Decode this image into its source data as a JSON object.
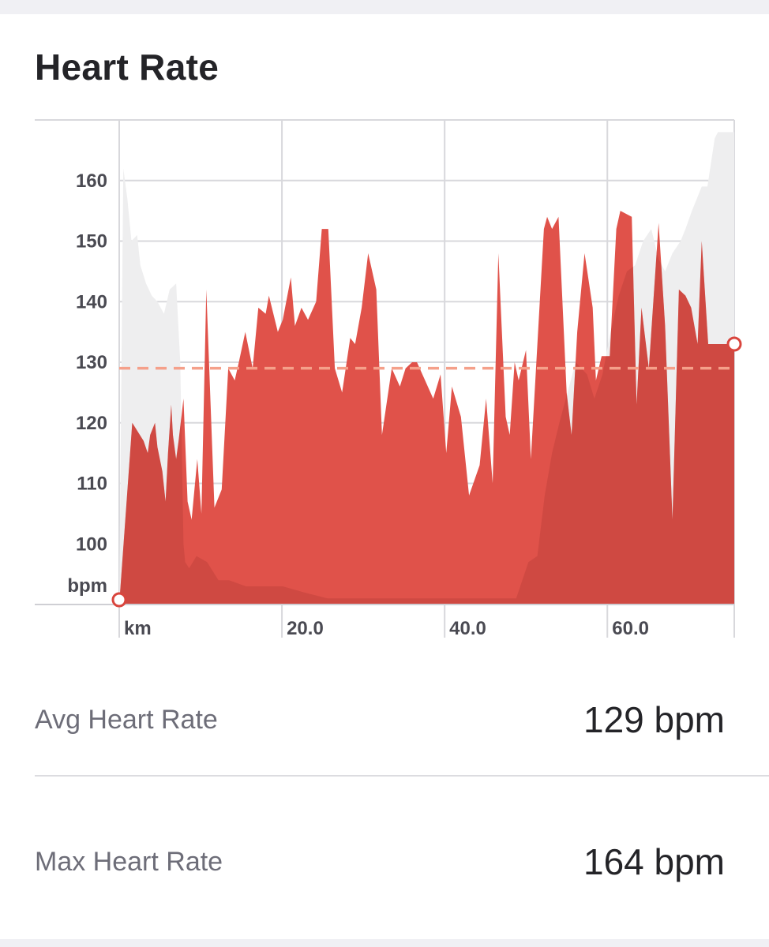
{
  "card": {
    "title": "Heart Rate"
  },
  "chart_data": {
    "type": "area",
    "title": "Heart Rate",
    "ylabel": "bpm",
    "xlabel": "km",
    "y_ticks": [
      100,
      110,
      120,
      130,
      140,
      150,
      160
    ],
    "x_tick_labels": [
      {
        "x": 0,
        "label": "km"
      },
      {
        "x": 20,
        "label": "20.0"
      },
      {
        "x": 40,
        "label": "40.0"
      },
      {
        "x": 60,
        "label": "60.0"
      }
    ],
    "xlim": [
      0,
      75.6
    ],
    "ylim": [
      90,
      170
    ],
    "grid": true,
    "average_line": 129,
    "colors": {
      "hr_fill": "#e0524a",
      "elevation_fill": "#eeeeef",
      "avg_line": "#f5a08a",
      "grid": "#d8d8dc"
    },
    "series": [
      {
        "x": [
          0,
          1.6,
          3,
          3.5,
          3.8,
          4.4,
          4.7,
          5.3,
          5.7,
          6,
          6.4,
          6.6,
          7,
          7.3,
          7.9,
          8.4,
          8.9,
          9.6,
          10.1,
          10.7,
          11.7,
          12.6,
          13.4,
          14.2,
          14.7,
          15.5,
          16.4,
          17.1,
          18,
          18.4,
          19.5,
          20.1,
          21.1,
          21.6,
          22.4,
          23.2,
          24.2,
          24.9,
          25.7,
          26.5,
          27.4,
          28.4,
          29,
          29.8,
          30.6,
          31.6,
          32.3,
          33.5,
          34.5,
          35.2,
          36,
          36.6,
          37.6,
          38.6,
          39.5,
          40.2,
          40.9,
          42,
          43,
          44.3,
          45.1,
          45.9,
          46.6,
          47.5,
          48,
          48.6,
          49.1,
          50,
          50.6,
          52.2,
          52.6,
          53.2,
          54,
          55,
          55.6,
          56.3,
          57.2,
          58.2,
          58.6,
          59.3,
          60.3,
          61.1,
          61.6,
          63,
          63.6,
          64.2,
          65.1,
          66.3,
          67.1,
          68,
          68.8,
          69.6,
          70.3,
          71.1,
          71.6,
          72.4,
          73.2,
          73.7,
          74.4,
          75.6
        ],
        "y": [
          90,
          120,
          117,
          115,
          118,
          120,
          116,
          112,
          107,
          115,
          123,
          118,
          114,
          117,
          124,
          107,
          104,
          114,
          105,
          142,
          106,
          109,
          129,
          127,
          130,
          135,
          129,
          139,
          138,
          141,
          135,
          137,
          144,
          136,
          139,
          137,
          140,
          152,
          152,
          129,
          125,
          134,
          133,
          139,
          148,
          142,
          118,
          129,
          126,
          129,
          130,
          130,
          127,
          124,
          128,
          115,
          126,
          121,
          108,
          113,
          124,
          110,
          148,
          121,
          118,
          130,
          127,
          132,
          114,
          152,
          154,
          152,
          154,
          125,
          118,
          135,
          148,
          139,
          127,
          131,
          131,
          152,
          155,
          154,
          123,
          139,
          129,
          153,
          136,
          104,
          142,
          141,
          139,
          133,
          150,
          133,
          133,
          133,
          133,
          133
        ]
      },
      {
        "x": [
          0,
          0.5,
          1,
          1.5,
          2.2,
          2.6,
          3.3,
          4,
          4.7,
          5.5,
          6.2,
          7,
          7.5,
          7.9,
          8.1,
          8.6,
          9.5,
          10.8,
          12.2,
          13.5,
          15.6,
          18,
          20.1,
          22.7,
          25.6,
          30,
          35,
          40,
          42,
          45,
          47,
          48.8,
          50.3,
          51.4,
          52.3,
          53.2,
          54.1,
          55.1,
          56.1,
          57.5,
          58.4,
          59.4,
          60.4,
          61.4,
          62.4,
          63.4,
          64.4,
          65.4,
          66.3,
          67.1,
          68,
          69,
          69.6,
          70.4,
          71.6,
          72.3,
          73.2,
          73.6,
          74.3,
          75.6
        ],
        "y": [
          90,
          162,
          157,
          150,
          151,
          146,
          143,
          141,
          140,
          138,
          142,
          143,
          130,
          100,
          97,
          96,
          98,
          97,
          94,
          94,
          93,
          93,
          93,
          92,
          91,
          91,
          91,
          91,
          91,
          91,
          91,
          91,
          97,
          98,
          108,
          115,
          120,
          125,
          130,
          128,
          124,
          128,
          135,
          141,
          145,
          146,
          150,
          152,
          147,
          145,
          148,
          150,
          152,
          155,
          159,
          159,
          167,
          168,
          168,
          168
        ]
      }
    ]
  },
  "stats": [
    {
      "label": "Avg Heart Rate",
      "value": "129 bpm"
    },
    {
      "label": "Max Heart Rate",
      "value": "164 bpm"
    }
  ]
}
